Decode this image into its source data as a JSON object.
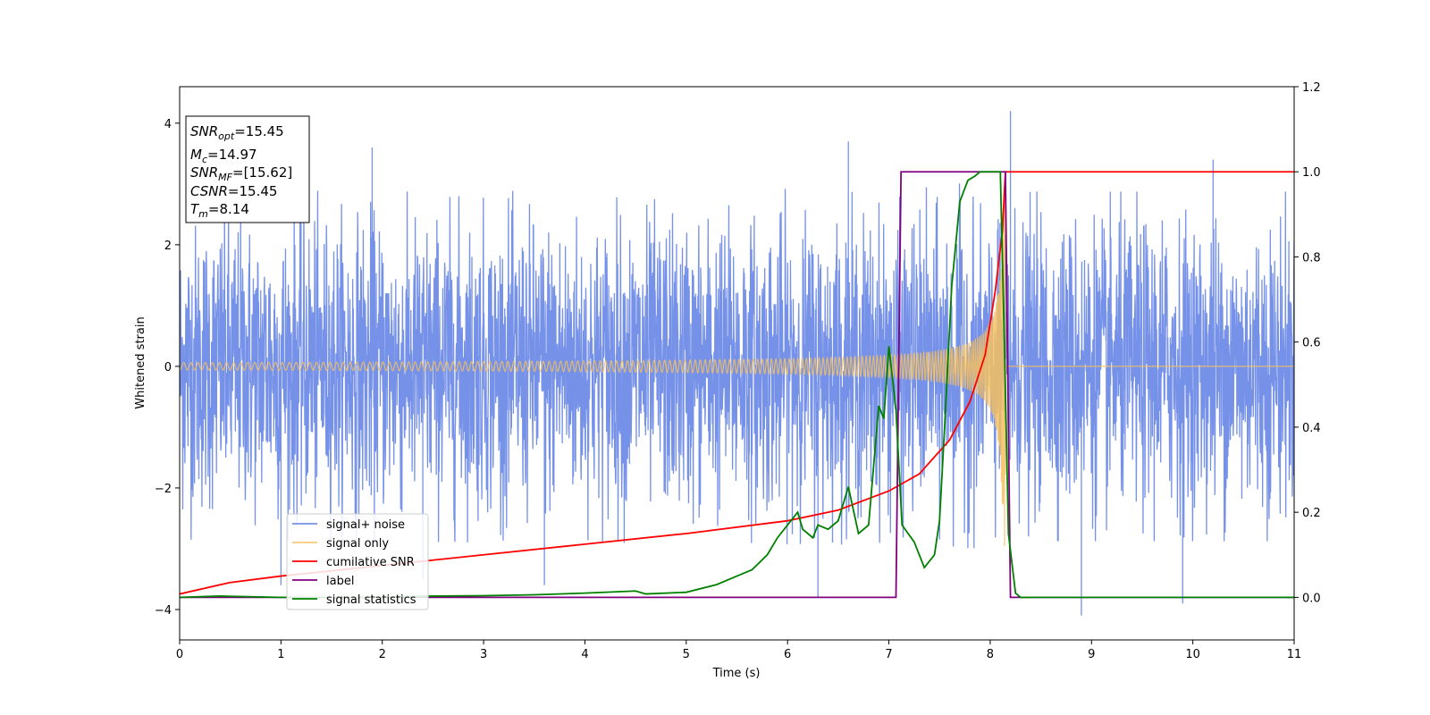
{
  "chart_data": {
    "type": "line",
    "xlabel": "Time (s)",
    "ylabel": "Whitened strain",
    "xlim": [
      0,
      11
    ],
    "ylim": [
      -4.5,
      4.6
    ],
    "y2lim": [
      -0.1,
      1.2
    ],
    "x_ticks": [
      "0",
      "1",
      "2",
      "3",
      "4",
      "5",
      "6",
      "7",
      "8",
      "9",
      "10",
      "11"
    ],
    "y_ticks": [
      "−4",
      "−2",
      "0",
      "2",
      "4"
    ],
    "y2_ticks": [
      "0.0",
      "0.2",
      "0.4",
      "0.6",
      "0.8",
      "1.0",
      "1.2"
    ],
    "grid": false,
    "legend_position": "lower-left",
    "annotation": {
      "lines": [
        {
          "main": "SNR",
          "sub": "opt",
          "rest": "=15.45"
        },
        {
          "main": "M",
          "sub": "c",
          "rest": "=14.97"
        },
        {
          "main": "SNR",
          "sub": "MF",
          "rest": "=[15.62]"
        },
        {
          "main": "CSNR",
          "sub": "",
          "rest": "=15.45"
        },
        {
          "main": "T",
          "sub": "m",
          "rest": "=8.14"
        }
      ]
    },
    "series": [
      {
        "name": "signal+ noise",
        "axis": "left",
        "color": "#6a88e6",
        "description": "whitened strain noise, amplitude about ±2.3 with peaks to ±3.6, outliers near t=8.2 (4.2) and t=6.3 (−3.8)",
        "envelope": 2.3,
        "spikes": [
          [
            1.9,
            3.6
          ],
          [
            6.3,
            -3.8
          ],
          [
            8.2,
            4.2
          ],
          [
            8.9,
            -4.1
          ],
          [
            9.9,
            -3.9
          ],
          [
            10.2,
            3.4
          ],
          [
            1.0,
            -3.6
          ],
          [
            3.6,
            -3.6
          ],
          [
            6.6,
            3.7
          ],
          [
            2.4,
            -3.5
          ]
        ]
      },
      {
        "name": "signal only",
        "axis": "left",
        "color": "#f5bf60",
        "description": "chirp signal, amplitude grows to about ±3.2 at merger t=8.15 then zero",
        "merger_time": 8.15,
        "peak_amplitude": 3.2
      },
      {
        "name": "cumilative SNR",
        "axis": "right",
        "color": "#ff0000",
        "x": [
          0,
          0.5,
          1,
          2,
          3,
          4,
          5,
          6,
          6.5,
          7,
          7.3,
          7.6,
          7.8,
          7.95,
          8.05,
          8.12,
          8.15,
          11
        ],
        "values": [
          0.008,
          0.035,
          0.05,
          0.075,
          0.1,
          0.125,
          0.15,
          0.18,
          0.205,
          0.25,
          0.29,
          0.37,
          0.46,
          0.57,
          0.72,
          0.86,
          1.0,
          1.0
        ]
      },
      {
        "name": "label",
        "axis": "right",
        "color": "#800080",
        "x": [
          0,
          7.07,
          7.12,
          8.15,
          8.2,
          11
        ],
        "values": [
          0,
          0,
          1,
          1,
          0,
          0
        ]
      },
      {
        "name": "signal statistics",
        "axis": "right",
        "color": "#008000",
        "x": [
          0,
          0.4,
          1,
          2,
          2.5,
          3,
          3.5,
          4,
          4.5,
          4.6,
          5,
          5.3,
          5.5,
          5.65,
          5.8,
          5.9,
          6.1,
          6.15,
          6.25,
          6.3,
          6.4,
          6.5,
          6.6,
          6.7,
          6.8,
          6.9,
          6.95,
          7.0,
          7.07,
          7.13,
          7.25,
          7.35,
          7.45,
          7.5,
          7.55,
          7.62,
          7.7,
          7.78,
          7.85,
          7.9,
          8.0,
          8.1,
          8.14,
          8.18,
          8.25,
          8.3,
          9,
          11
        ],
        "values": [
          0.0,
          0.003,
          0.0,
          0.0,
          0.003,
          0.004,
          0.006,
          0.01,
          0.015,
          0.008,
          0.012,
          0.03,
          0.05,
          0.065,
          0.1,
          0.14,
          0.2,
          0.16,
          0.14,
          0.17,
          0.16,
          0.18,
          0.26,
          0.15,
          0.17,
          0.45,
          0.42,
          0.59,
          0.44,
          0.17,
          0.13,
          0.07,
          0.1,
          0.18,
          0.4,
          0.73,
          0.93,
          0.98,
          0.99,
          1.0,
          1.0,
          1.0,
          0.6,
          0.15,
          0.01,
          0.0,
          0.0,
          0.0
        ]
      }
    ]
  }
}
